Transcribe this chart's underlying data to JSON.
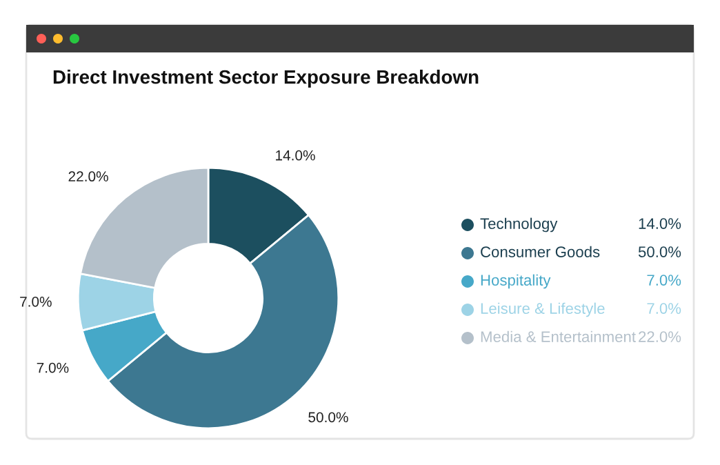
{
  "chart_data": {
    "type": "donut",
    "title": "Direct Investment Sector Exposure Breakdown",
    "categories": [
      "Technology",
      "Consumer Goods",
      "Hospitality",
      "Leisure & Lifestyle",
      "Media & Entertainment"
    ],
    "values": [
      14.0,
      50.0,
      7.0,
      7.0,
      22.0
    ],
    "value_labels": [
      "14.0%",
      "50.0%",
      "7.0%",
      "7.0%",
      "22.0%"
    ],
    "colors": [
      "#1c4f5f",
      "#3d7891",
      "#46a8c8",
      "#9dd3e6",
      "#b4c0ca"
    ],
    "legend": "right"
  }
}
